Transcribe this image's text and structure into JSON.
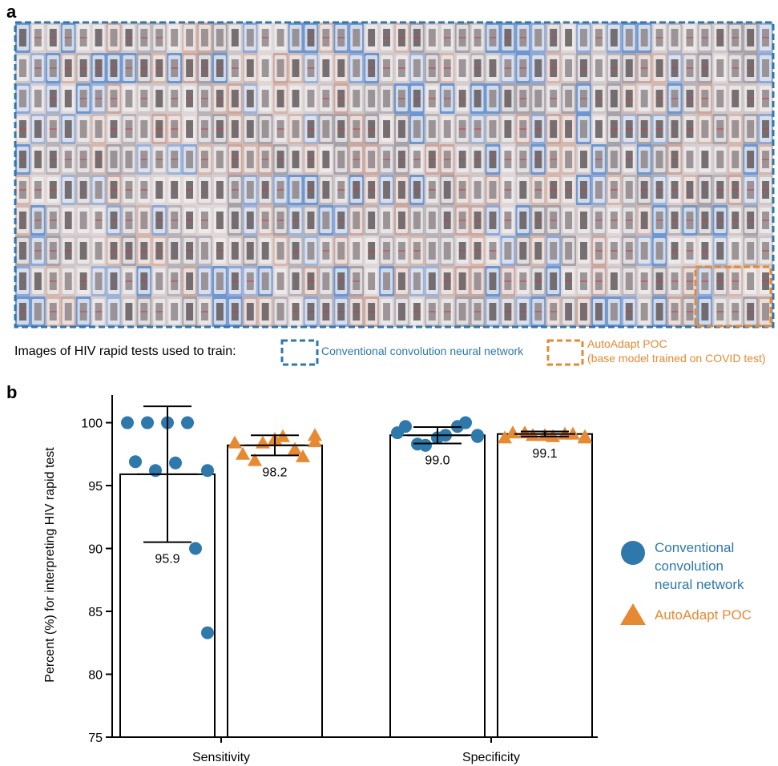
{
  "panel_a": {
    "label": "a",
    "caption": "Images of HIV rapid tests used to train:",
    "legend": [
      "Conventional convolution neural network",
      "AutoAdapt POC",
      "(base model trained on COVID test)"
    ]
  },
  "panel_b": {
    "label": "b"
  },
  "chart_data": {
    "type": "bar_scatter",
    "ylabel": "Percent  (%) for interpreting HIV rapid test",
    "categories": [
      "Sensitivity",
      "Specificity"
    ],
    "ylim": [
      75,
      102.2
    ],
    "yticks": [
      75,
      80,
      85,
      90,
      95,
      100
    ],
    "series": [
      {
        "name": "Conventional convolution neural network",
        "color": "#2f78ac",
        "marker": "circle",
        "values": [
          95.9,
          99.0
        ],
        "value_labels": [
          "95.9",
          "99.0"
        ],
        "errors": [
          5.4,
          0.65
        ],
        "points": [
          [
            100,
            100,
            100,
            100,
            96.2,
            96.9,
            96.2,
            96.8,
            90,
            83.3
          ],
          [
            99.2,
            98.3,
            98.8,
            99.7,
            99.0,
            99.7,
            98.2,
            99.0,
            100.0,
            98.9
          ]
        ]
      },
      {
        "name": "AutoAdapt POC",
        "color": "#e58a33",
        "marker": "triangle",
        "values": [
          98.2,
          99.1
        ],
        "value_labels": [
          "98.2",
          "99.1"
        ],
        "errors": [
          0.8,
          0.2
        ],
        "points": [
          [
            98.4,
            97.0,
            98.7,
            97.9,
            99.0,
            97.5,
            98.4,
            98.9,
            97.3,
            98.5
          ],
          [
            98.8,
            99.2,
            99.0,
            99.1,
            98.9,
            99.2,
            99.0,
            98.9,
            99.1,
            98.8
          ]
        ]
      }
    ]
  }
}
